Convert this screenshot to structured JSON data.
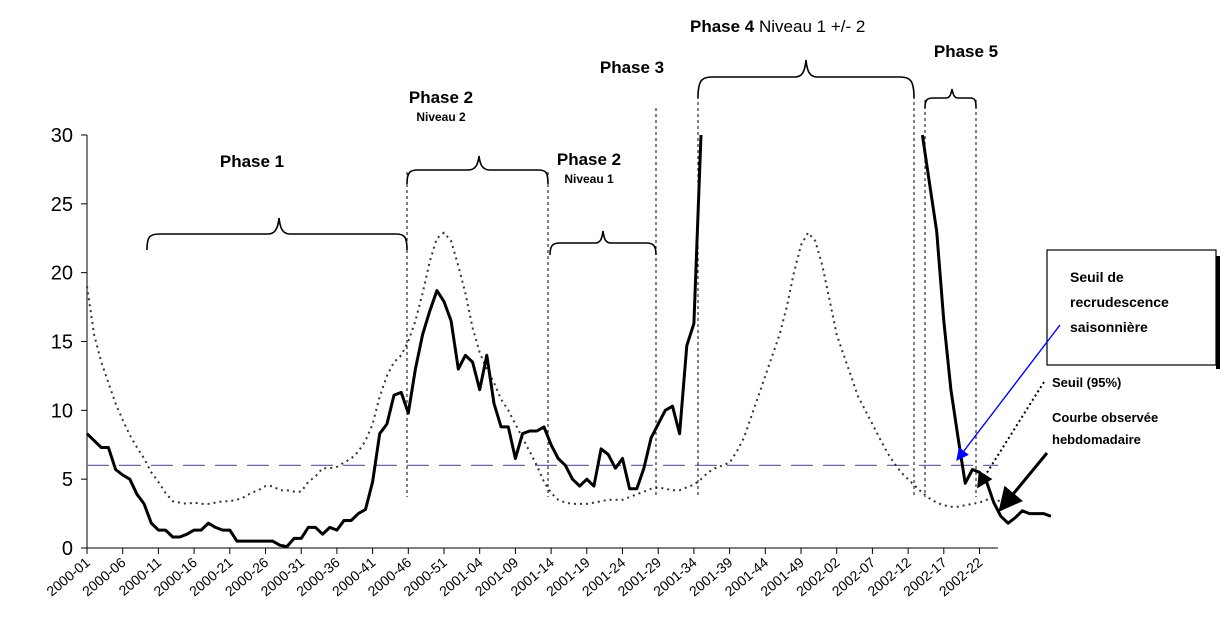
{
  "chart_data": {
    "type": "line",
    "title": "",
    "xlabel": "",
    "ylabel": "",
    "ylim": [
      0,
      30
    ],
    "y_ticks": [
      0,
      5,
      10,
      15,
      20,
      25,
      30
    ],
    "x_tick_labels": [
      "2000-01",
      "2000-06",
      "2000-11",
      "2000-16",
      "2000-21",
      "2000-26",
      "2000-31",
      "2000-36",
      "2000-41",
      "2000-46",
      "2000-51",
      "2001-04",
      "2001-09",
      "2001-14",
      "2001-19",
      "2001-24",
      "2001-29",
      "2001-34",
      "2001-39",
      "2001-44",
      "2001-49",
      "2002-02",
      "2002-07",
      "2002-12",
      "2002-17",
      "2002-22"
    ],
    "grid": false,
    "series": [
      {
        "key": "observed",
        "style": "solid-black-thick",
        "values": [
          8.3,
          7.8,
          7.3,
          7.3,
          5.7,
          5.3,
          5.0,
          3.9,
          3.2,
          1.8,
          1.3,
          1.3,
          0.8,
          0.8,
          1.0,
          1.3,
          1.3,
          1.8,
          1.5,
          1.3,
          1.3,
          0.5,
          0.5,
          0.5,
          0.5,
          0.5,
          0.5,
          0.2,
          0.1,
          0.7,
          0.7,
          1.5,
          1.5,
          1.0,
          1.5,
          1.3,
          2.0,
          2.0,
          2.5,
          2.8,
          4.8,
          8.3,
          9.0,
          11.1,
          11.3,
          9.8,
          13.0,
          15.5,
          17.2,
          18.7,
          17.9,
          16.5,
          13.0,
          14.0,
          13.5,
          11.5,
          14.0,
          10.5,
          8.8,
          8.8,
          6.5,
          8.3,
          8.5,
          8.5,
          8.8,
          7.5,
          6.5,
          6.0,
          5.0,
          4.5,
          5.0,
          4.5,
          7.2,
          6.8,
          5.8,
          6.5,
          4.3,
          4.3,
          5.8,
          8.0,
          9.0,
          10.0,
          10.3,
          8.3,
          14.7,
          16.3,
          30,
          null,
          null,
          null,
          null,
          null,
          null,
          null,
          null,
          null,
          null,
          null,
          null,
          null,
          null,
          null,
          null,
          null,
          null,
          null,
          null,
          null,
          null,
          null,
          null,
          null,
          null,
          null,
          null,
          null,
          null,
          30,
          26.5,
          23.0,
          16.5,
          11.5,
          8.0,
          4.7,
          5.7,
          5.5,
          4.8,
          3.3,
          2.3,
          1.8,
          2.2,
          2.7,
          2.5,
          2.5,
          2.5,
          2.3
        ]
      },
      {
        "key": "threshold_95",
        "style": "dotted",
        "values": [
          19.0,
          15.5,
          13.5,
          12.0,
          10.5,
          9.3,
          8.2,
          7.3,
          6.5,
          5.5,
          4.8,
          4.0,
          3.4,
          3.3,
          3.2,
          3.3,
          3.2,
          3.2,
          3.3,
          3.4,
          3.4,
          3.5,
          3.7,
          4.0,
          4.2,
          4.5,
          4.5,
          4.2,
          4.2,
          4.1,
          4.1,
          4.8,
          5.2,
          5.8,
          5.8,
          5.9,
          6.2,
          6.5,
          7.0,
          7.8,
          9.0,
          11.0,
          12.5,
          13.5,
          14.0,
          15.0,
          16.5,
          18.5,
          20.8,
          22.5,
          22.9,
          22.3,
          20.5,
          18.5,
          16.0,
          14.2,
          13.0,
          12.0,
          10.8,
          10.0,
          9.0,
          8.0,
          7.0,
          6.0,
          4.8,
          4.0,
          3.5,
          3.3,
          3.2,
          3.2,
          3.2,
          3.3,
          3.4,
          3.5,
          3.5,
          3.5,
          3.7,
          3.9,
          4.1,
          4.3,
          4.4,
          4.3,
          4.2,
          4.2,
          4.4,
          4.6,
          5.0,
          5.5,
          5.8,
          6.0,
          6.2,
          7.0,
          8.0,
          9.5,
          11.0,
          12.5,
          14.0,
          15.5,
          17.5,
          20.0,
          22.0,
          22.9,
          22.3,
          20.5,
          18.0,
          15.5,
          14.0,
          12.5,
          11.0,
          10.0,
          9.0,
          8.0,
          7.0,
          6.2,
          5.5,
          5.0,
          4.5,
          4.0,
          3.6,
          3.3,
          3.1,
          3.0,
          3.0,
          3.1,
          3.2,
          3.3,
          3.5,
          3.5,
          3.4
        ]
      },
      {
        "key": "seasonal_threshold",
        "style": "dashed-blue",
        "values": [
          6.0,
          6.0
        ]
      }
    ]
  },
  "phases": {
    "p1": {
      "title": "Phase 1"
    },
    "p2a": {
      "title": "Phase 2",
      "level": "Niveau 2"
    },
    "p2b": {
      "title": "Phase 2",
      "level": "Niveau 1"
    },
    "p3": {
      "title": "Phase 3"
    },
    "p4": {
      "title": "Phase 4",
      "suffix": "Niveau 1 +/- 2"
    },
    "p5": {
      "title": "Phase 5"
    }
  },
  "annotations": {
    "seasonal_box": {
      "line1": "Seuil de",
      "line2": "recrudescence",
      "line3": "saisonnière"
    },
    "threshold": {
      "label": "Seuil (95%)"
    },
    "observed": {
      "line1": "Courbe observée",
      "line2": "hebdomadaire"
    }
  },
  "colors": {
    "observed": "#000000",
    "threshold": "#333333",
    "seasonal": "#6a6aa0",
    "arrow_blue": "#0000ff",
    "axis": "#000000"
  }
}
